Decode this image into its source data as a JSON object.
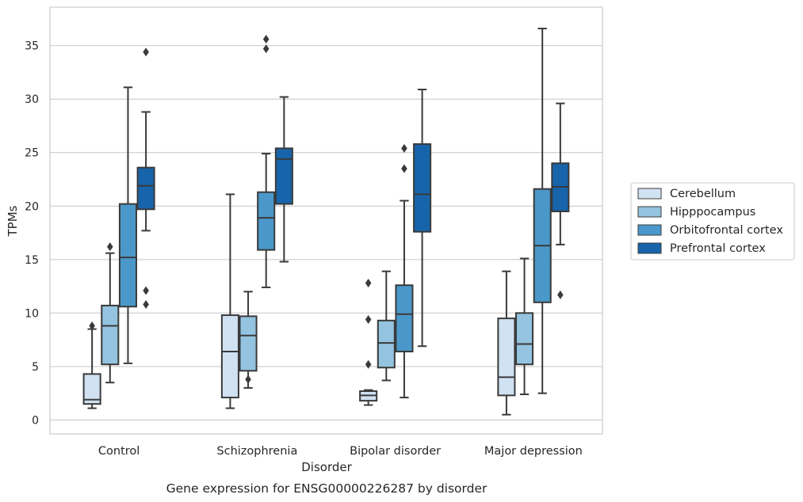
{
  "chart_data": {
    "type": "box",
    "title": "Gene expression for ENSG00000226287 by disorder",
    "xlabel": "Disorder",
    "ylabel": "TPMs",
    "ylim": [
      -1.3,
      38.6
    ],
    "yticks": [
      0,
      5,
      10,
      15,
      20,
      25,
      30,
      35
    ],
    "grid": true,
    "legend_position": "right",
    "categories": [
      "Control",
      "Schizophrenia",
      "Bipolar disorder",
      "Major depression"
    ],
    "series": [
      {
        "name": "Cerebellum",
        "color": "#d0e1f2",
        "boxes": [
          {
            "whislo": 1.1,
            "q1": 1.5,
            "med": 1.9,
            "q3": 4.3,
            "whishi": 8.5,
            "fliers": [
              8.8
            ]
          },
          {
            "whislo": 1.1,
            "q1": 2.1,
            "med": 6.4,
            "q3": 9.8,
            "whishi": 21.1,
            "fliers": []
          },
          {
            "whislo": 1.4,
            "q1": 1.8,
            "med": 2.3,
            "q3": 2.7,
            "whishi": 2.8,
            "fliers": [
              5.2,
              9.4,
              12.8
            ]
          },
          {
            "whislo": 0.5,
            "q1": 2.3,
            "med": 4.0,
            "q3": 9.5,
            "whishi": 13.9,
            "fliers": []
          }
        ]
      },
      {
        "name": "Hipppocampus",
        "color": "#94c4df",
        "boxes": [
          {
            "whislo": 3.5,
            "q1": 5.2,
            "med": 8.8,
            "q3": 10.7,
            "whishi": 15.6,
            "fliers": [
              16.2
            ]
          },
          {
            "whislo": 3.0,
            "q1": 4.6,
            "med": 7.9,
            "q3": 9.7,
            "whishi": 12.0,
            "fliers": [
              3.8
            ]
          },
          {
            "whislo": 3.7,
            "q1": 4.9,
            "med": 7.2,
            "q3": 9.3,
            "whishi": 13.9,
            "fliers": []
          },
          {
            "whislo": 2.4,
            "q1": 5.2,
            "med": 7.1,
            "q3": 10.0,
            "whishi": 15.1,
            "fliers": []
          }
        ]
      },
      {
        "name": "Orbitofrontal cortex",
        "color": "#4a98c9",
        "boxes": [
          {
            "whislo": 5.3,
            "q1": 10.6,
            "med": 15.2,
            "q3": 20.2,
            "whishi": 31.1,
            "fliers": []
          },
          {
            "whislo": 12.4,
            "q1": 15.9,
            "med": 18.9,
            "q3": 21.3,
            "whishi": 24.9,
            "fliers": [
              34.7,
              35.6
            ]
          },
          {
            "whislo": 2.1,
            "q1": 6.4,
            "med": 9.9,
            "q3": 12.6,
            "whishi": 20.5,
            "fliers": [
              23.5,
              25.4
            ]
          },
          {
            "whislo": 2.5,
            "q1": 11.0,
            "med": 16.3,
            "q3": 21.6,
            "whishi": 36.6,
            "fliers": []
          }
        ]
      },
      {
        "name": "Prefrontal cortex",
        "color": "#1764ab",
        "boxes": [
          {
            "whislo": 17.7,
            "q1": 19.7,
            "med": 21.9,
            "q3": 23.6,
            "whishi": 28.8,
            "fliers": [
              10.8,
              12.1,
              34.4
            ]
          },
          {
            "whislo": 14.8,
            "q1": 20.2,
            "med": 24.4,
            "q3": 25.4,
            "whishi": 30.2,
            "fliers": []
          },
          {
            "whislo": 6.9,
            "q1": 17.6,
            "med": 21.1,
            "q3": 25.8,
            "whishi": 30.9,
            "fliers": []
          },
          {
            "whislo": 16.4,
            "q1": 19.5,
            "med": 21.8,
            "q3": 24.0,
            "whishi": 29.6,
            "fliers": [
              11.7
            ]
          }
        ]
      }
    ]
  }
}
